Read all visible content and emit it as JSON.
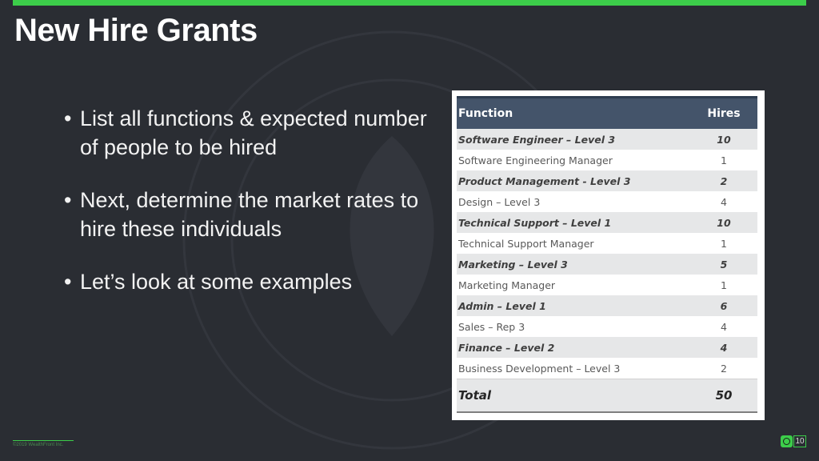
{
  "slide": {
    "title": "New Hire Grants",
    "bullets": [
      "List all functions & expected number of people to be hired",
      "Next, determine the market rates to hire these individuals",
      "Let’s look at some examples"
    ],
    "footer": "©2019 WealthFront Inc.",
    "page_number": "10"
  },
  "table": {
    "headers": {
      "function": "Function",
      "hires": "Hires"
    },
    "rows": [
      {
        "function": "Software Engineer – Level 3",
        "hires": "10",
        "highlight": true
      },
      {
        "function": "Software Engineering Manager",
        "hires": "1",
        "highlight": false
      },
      {
        "function": "Product Management - Level 3",
        "hires": "2",
        "highlight": true
      },
      {
        "function": "Design – Level 3",
        "hires": "4",
        "highlight": false
      },
      {
        "function": "Technical Support – Level 1",
        "hires": "10",
        "highlight": true
      },
      {
        "function": "Technical Support Manager",
        "hires": "1",
        "highlight": false
      },
      {
        "function": "Marketing – Level 3",
        "hires": "5",
        "highlight": true
      },
      {
        "function": "Marketing Manager",
        "hires": "1",
        "highlight": false
      },
      {
        "function": "Admin – Level 1",
        "hires": "6",
        "highlight": true
      },
      {
        "function": "Sales – Rep 3",
        "hires": "4",
        "highlight": false
      },
      {
        "function": "Finance  – Level 2",
        "hires": "4",
        "highlight": true
      },
      {
        "function": "Business Development – Level 3",
        "hires": "2",
        "highlight": false
      }
    ],
    "total": {
      "label": "Total",
      "value": "50"
    }
  },
  "theme": {
    "accent": "#3ccd4a",
    "background": "#2a2d33",
    "header_bg": "#44546a"
  },
  "icons": {
    "slide_logo": "equity-logo-icon"
  }
}
